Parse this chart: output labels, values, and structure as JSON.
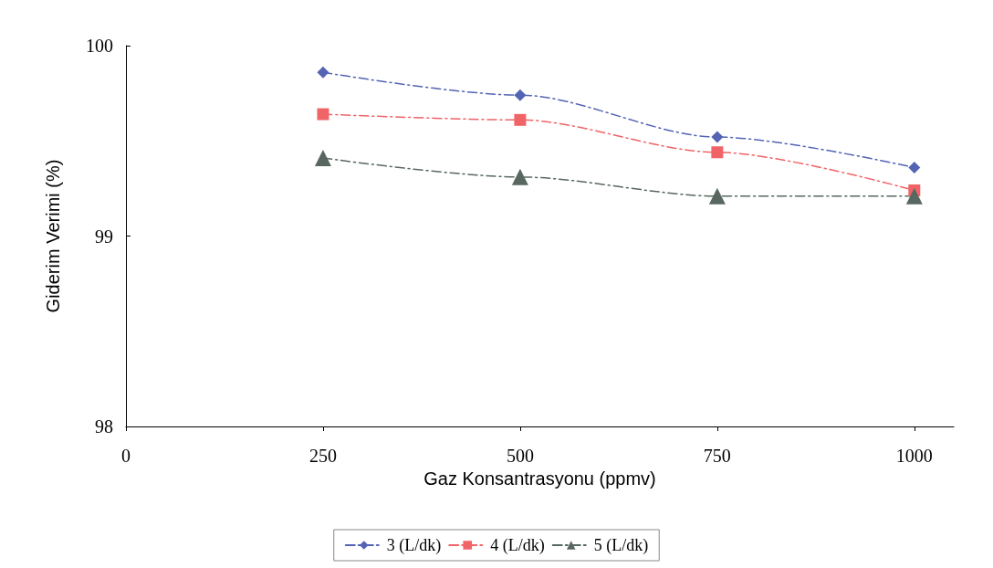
{
  "chart_data": {
    "type": "line",
    "xlabel": "Gaz Konsantrasyonu (ppmv)",
    "ylabel": "Giderim Verimi (%)",
    "x": [
      250,
      500,
      750,
      1000
    ],
    "series": [
      {
        "name": "3 (L/dk)",
        "color": "#5464b4",
        "marker": "diamond",
        "values": [
          99.86,
          99.74,
          99.52,
          99.36
        ]
      },
      {
        "name": "4 (L/dk)",
        "color": "#f06468",
        "marker": "square",
        "values": [
          99.64,
          99.61,
          99.44,
          99.24
        ]
      },
      {
        "name": "5 (L/dk)",
        "color": "#586860",
        "marker": "triangle",
        "values": [
          99.41,
          99.31,
          99.21,
          99.21
        ]
      }
    ],
    "xlim": [
      0,
      1050
    ],
    "xticks": [
      0,
      250,
      500,
      750,
      1000
    ],
    "ylim": [
      98,
      100
    ],
    "yticks": [
      98,
      99,
      100
    ],
    "grid": false,
    "legend": "bottom",
    "line_style": "dashed"
  }
}
